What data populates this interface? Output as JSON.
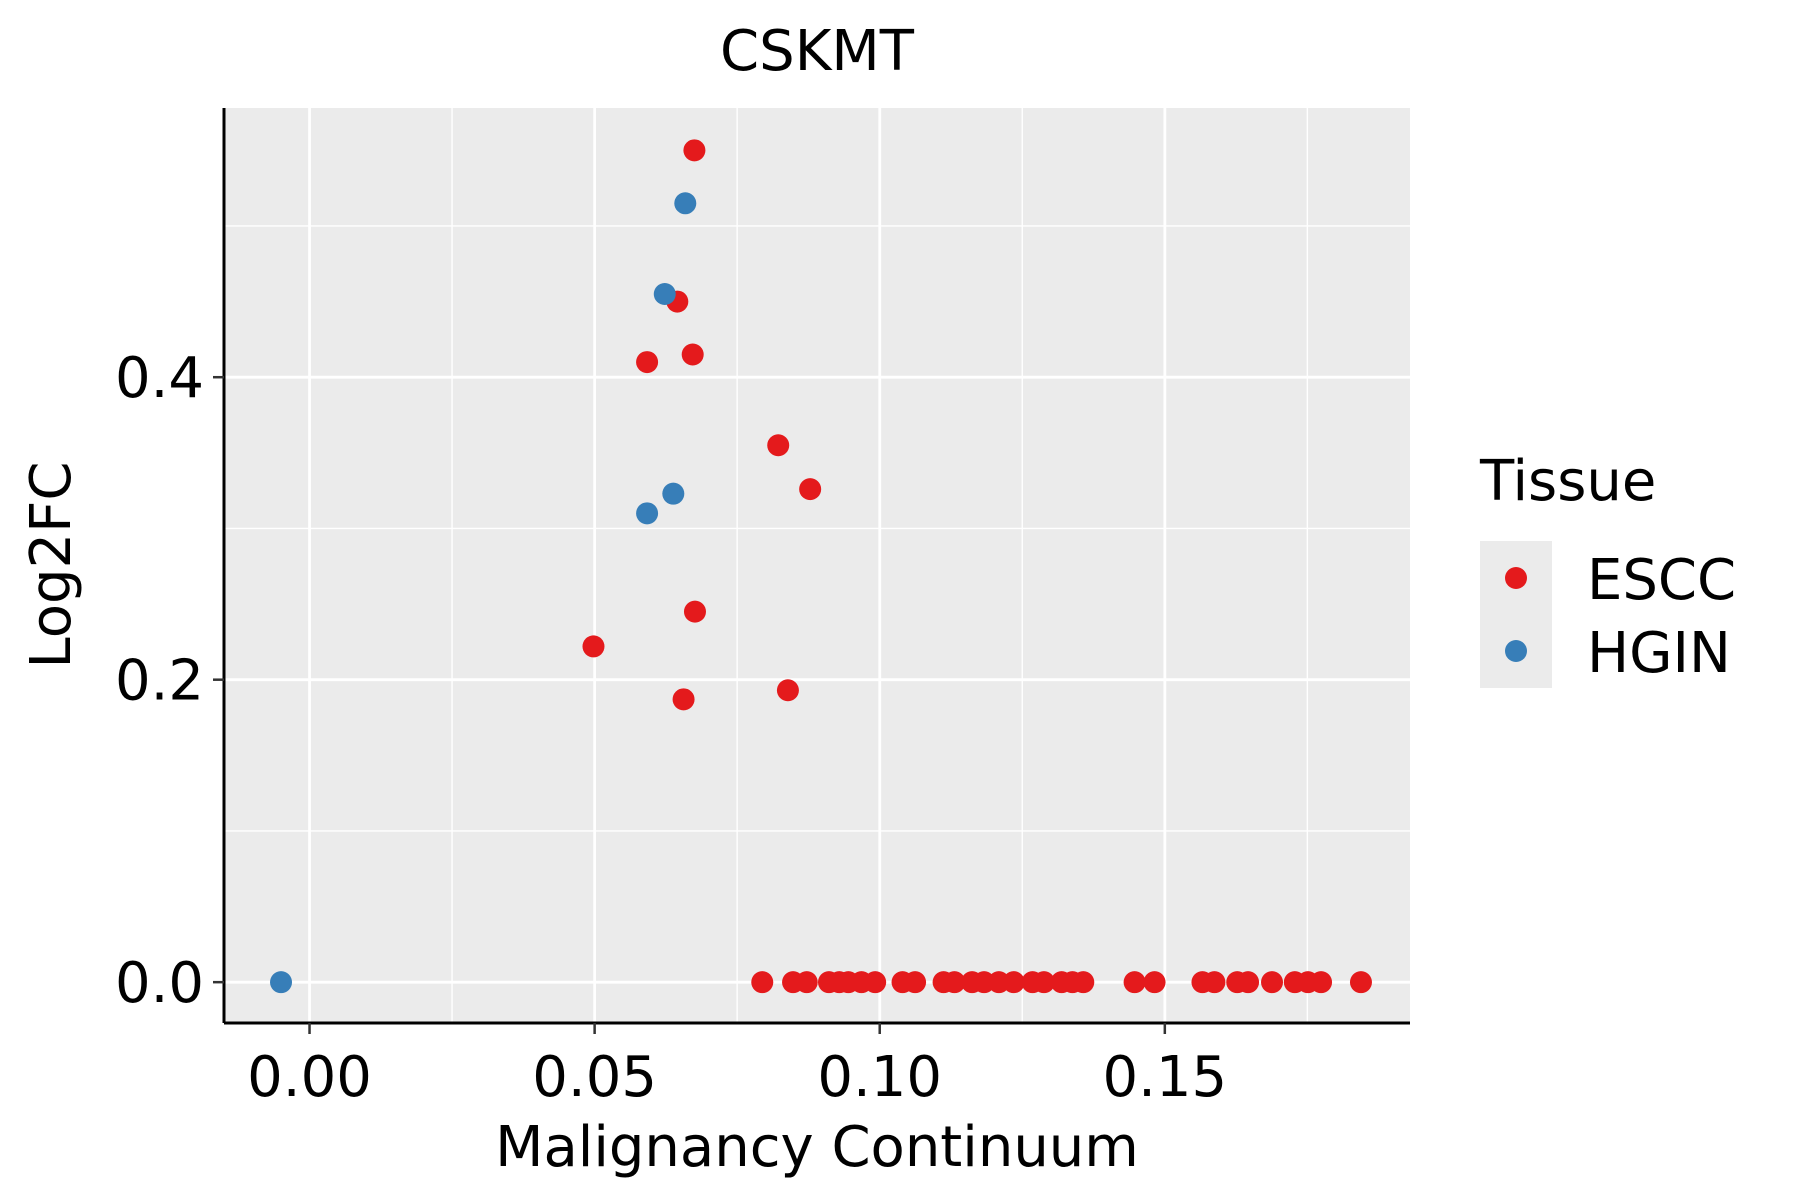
{
  "chart_data": {
    "type": "scatter",
    "title": "CSKMT",
    "xlabel": "Malignancy Continuum",
    "ylabel": "Log2FC",
    "xlim": [
      -0.015,
      0.193
    ],
    "ylim": [
      -0.027,
      0.578
    ],
    "x_ticks": [
      0.0,
      0.05,
      0.1,
      0.15
    ],
    "x_tick_labels": [
      "0.00",
      "0.05",
      "0.10",
      "0.15"
    ],
    "y_ticks": [
      0.0,
      0.2,
      0.4
    ],
    "y_tick_labels": [
      "0.0",
      "0.2",
      "0.4"
    ],
    "x_minor_grid": [
      0.025,
      0.075,
      0.125,
      0.175
    ],
    "y_minor_grid": [
      0.1,
      0.3,
      0.5
    ],
    "grid": true,
    "legend": {
      "title": "Tissue",
      "position": "right",
      "entries": [
        {
          "label": "ESCC",
          "color": "#E41A1C"
        },
        {
          "label": "HGIN",
          "color": "#377EB8"
        }
      ]
    },
    "series": [
      {
        "name": "ESCC",
        "color": "#E41A1C",
        "points": [
          [
            0.0675,
            0.55
          ],
          [
            0.0645,
            0.45
          ],
          [
            0.0592,
            0.41
          ],
          [
            0.0672,
            0.415
          ],
          [
            0.0822,
            0.355
          ],
          [
            0.0878,
            0.326
          ],
          [
            0.0676,
            0.245
          ],
          [
            0.0498,
            0.222
          ],
          [
            0.0656,
            0.187
          ],
          [
            0.0839,
            0.193
          ],
          [
            0.0794,
            0.0
          ],
          [
            0.0848,
            0.0
          ],
          [
            0.0872,
            0.0
          ],
          [
            0.0911,
            0.0
          ],
          [
            0.0929,
            0.0
          ],
          [
            0.0945,
            0.0
          ],
          [
            0.0968,
            0.0
          ],
          [
            0.0992,
            0.0
          ],
          [
            0.104,
            0.0
          ],
          [
            0.1062,
            0.0
          ],
          [
            0.1112,
            0.0
          ],
          [
            0.1131,
            0.0
          ],
          [
            0.1162,
            0.0
          ],
          [
            0.1183,
            0.0
          ],
          [
            0.1209,
            0.0
          ],
          [
            0.1235,
            0.0
          ],
          [
            0.1268,
            0.0
          ],
          [
            0.1288,
            0.0
          ],
          [
            0.1319,
            0.0
          ],
          [
            0.1338,
            0.0
          ],
          [
            0.1357,
            0.0
          ],
          [
            0.1447,
            0.0
          ],
          [
            0.1482,
            0.0
          ],
          [
            0.1566,
            0.0
          ],
          [
            0.1587,
            0.0
          ],
          [
            0.1627,
            0.0
          ],
          [
            0.1646,
            0.0
          ],
          [
            0.1688,
            0.0
          ],
          [
            0.1728,
            0.0
          ],
          [
            0.1751,
            0.0
          ],
          [
            0.1774,
            0.0
          ],
          [
            0.1844,
            0.0
          ]
        ]
      },
      {
        "name": "HGIN",
        "color": "#377EB8",
        "points": [
          [
            0.0659,
            0.515
          ],
          [
            0.0623,
            0.455
          ],
          [
            0.0638,
            0.323
          ],
          [
            0.0592,
            0.31
          ],
          [
            -0.005,
            0.0
          ]
        ]
      }
    ]
  }
}
